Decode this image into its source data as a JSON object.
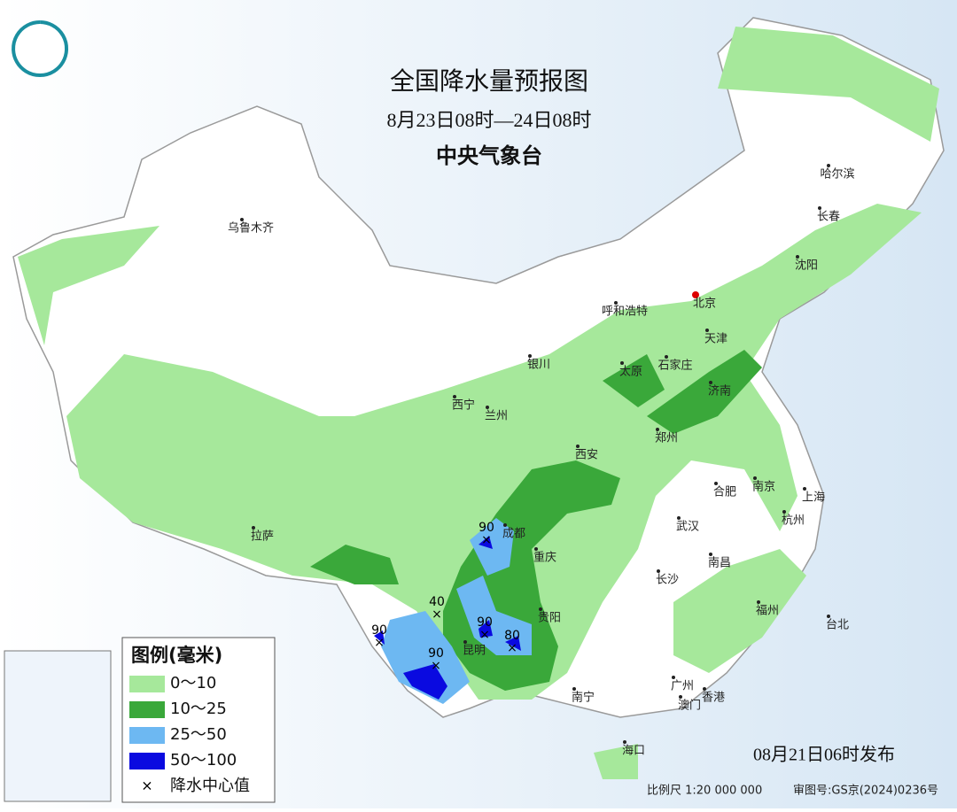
{
  "header": {
    "title": "全国降水量预报图",
    "period": "8月23日08时—24日08时",
    "issuer": "中央气象台"
  },
  "cities": [
    "乌鲁木齐",
    "哈尔滨",
    "长春",
    "沈阳",
    "呼和浩特",
    "北京",
    "天津",
    "银川",
    "太原",
    "石家庄",
    "济南",
    "西宁",
    "兰州",
    "郑州",
    "西安",
    "合肥",
    "南京",
    "上海",
    "拉萨",
    "成都",
    "杭州",
    "武汉",
    "重庆",
    "南昌",
    "长沙",
    "贵阳",
    "福州",
    "台北",
    "昆明",
    "南宁",
    "广州",
    "香港",
    "澳门",
    "海口"
  ],
  "rain_centers": [
    90,
    40,
    90,
    80,
    90,
    90
  ],
  "legend": {
    "title": "图例(毫米)",
    "items": [
      "0～10",
      "10～25",
      "25～50",
      "50～100",
      "降水中心值"
    ]
  },
  "footer": {
    "issued": "08月21日06时发布",
    "scale": "比例尺 1:20 000 000",
    "approval": "审图号:GS京(2024)0236号"
  }
}
